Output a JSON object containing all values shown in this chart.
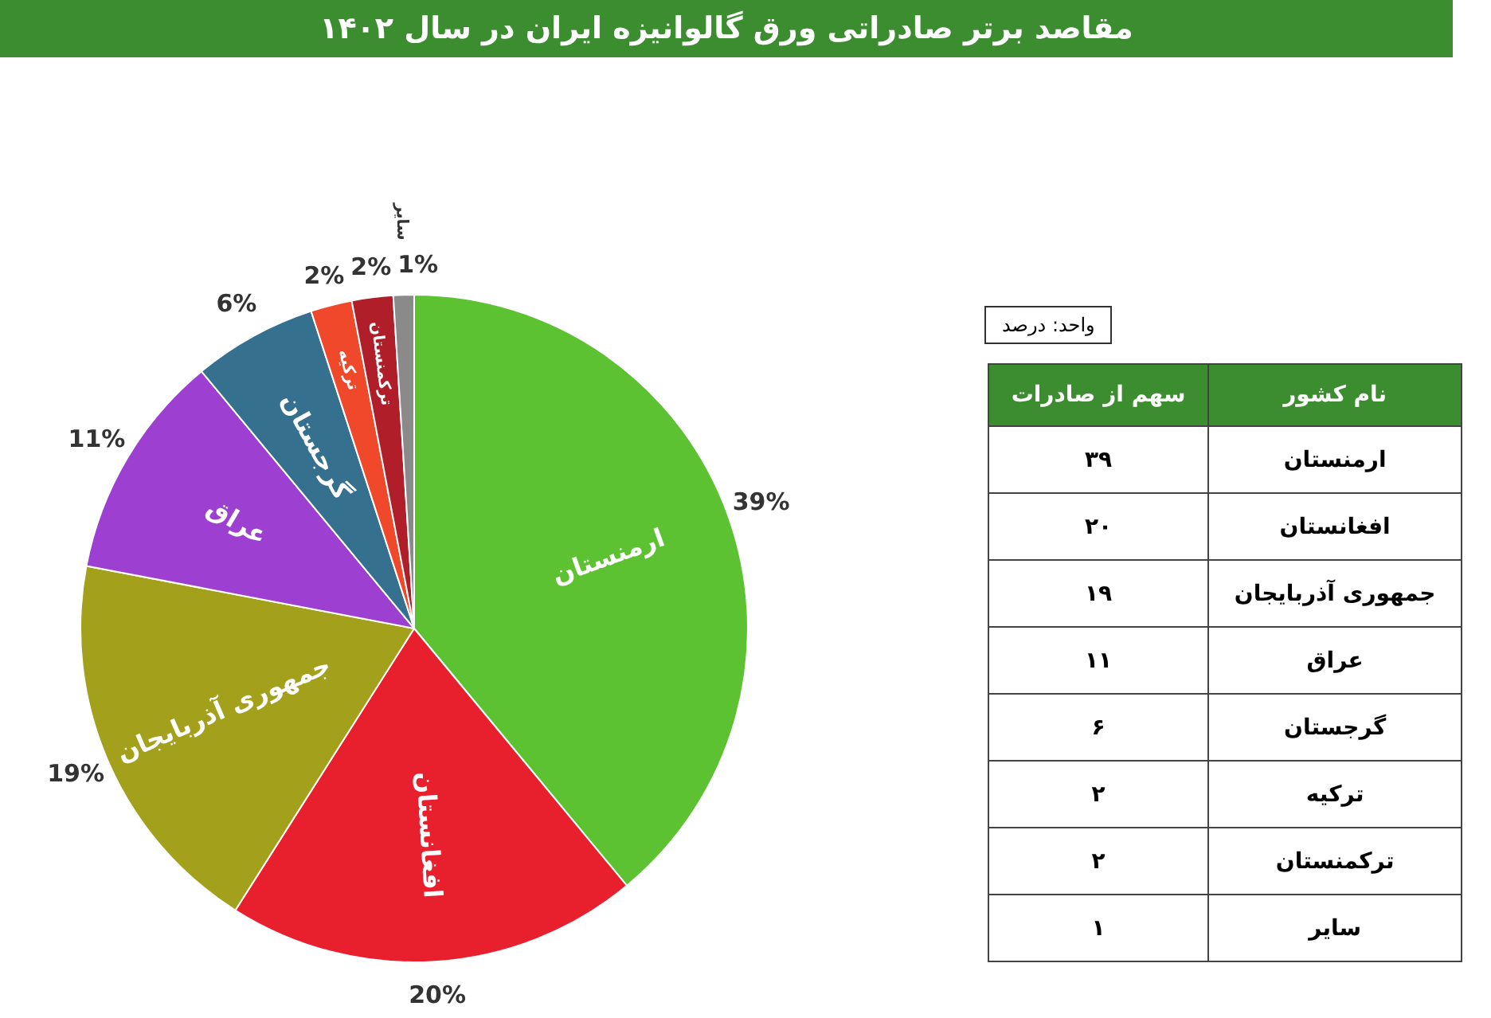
{
  "chart_data": {
    "type": "pie",
    "title": "مقاصد برتر صادراتی ورق گالوانیزه ایران در سال ۱۴۰۲",
    "categories": [
      "ارمنستان",
      "افغانستان",
      "جمهوری آذربایجان",
      "عراق",
      "گرجستان",
      "ترکیه",
      "ترکمنستان",
      "سایر"
    ],
    "values": [
      39,
      20,
      19,
      11,
      6,
      2,
      2,
      1
    ],
    "colors": [
      "#5cc232",
      "#e8202e",
      "#a3a01c",
      "#9d3fd0",
      "#35708f",
      "#f0482a",
      "#b01e2a",
      "#8a8a8a"
    ],
    "value_labels": [
      "39%",
      "20%",
      "19%",
      "11%",
      "6%",
      "2%",
      "2%",
      "1%"
    ],
    "data_labels": true,
    "annotations": [
      "واحد: درصد",
      "نام کشور",
      "سهم از صادرات",
      "۳۹",
      "۲۰",
      "۱۹",
      "۱۱",
      "۶",
      "۲",
      "۲",
      "۱"
    ]
  }
}
